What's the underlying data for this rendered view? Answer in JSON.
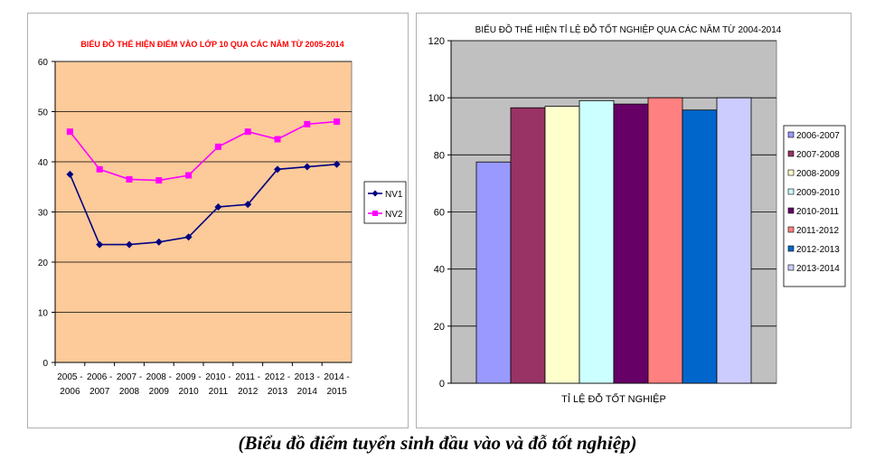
{
  "caption": "(Biểu đồ điểm tuyển sinh đầu vào và đỗ tốt nghiệp)",
  "chart_data": [
    {
      "type": "line",
      "title": "BIỂU ĐỒ THỂ HIỆN ĐIỂM VÀO LỚP 10 QUA CÁC NĂM TỪ 2005-2014",
      "categories": [
        [
          "2005 -",
          "2006"
        ],
        [
          "2006 -",
          "2007"
        ],
        [
          "2007 -",
          "2008"
        ],
        [
          "2008 -",
          "2009"
        ],
        [
          "2009 -",
          "2010"
        ],
        [
          "2010 -",
          "2011"
        ],
        [
          "2011 -",
          "2012"
        ],
        [
          "2012 -",
          "2013"
        ],
        [
          "2013 -",
          "2014"
        ],
        [
          "2014 -",
          "2015"
        ]
      ],
      "series": [
        {
          "name": "NV1",
          "values": [
            37.5,
            23.5,
            23.5,
            24,
            25,
            31,
            31.5,
            38.5,
            39,
            39.5
          ],
          "color": "#000080",
          "marker": "diamond"
        },
        {
          "name": "NV2",
          "values": [
            46,
            38.5,
            36.5,
            36.3,
            37.3,
            43,
            46,
            44.5,
            47.5,
            48
          ],
          "color": "#ff00ff",
          "marker": "square"
        }
      ],
      "ylim": [
        0,
        60
      ],
      "yticks": [
        0,
        10,
        20,
        30,
        40,
        50,
        60
      ],
      "grid": true,
      "plot_bg": "#fdca9a",
      "legend": "right"
    },
    {
      "type": "bar",
      "title": "BIỂU ĐỒ THỂ HIỆN TỈ LỆ ĐỖ TỐT NGHIỆP QUA CÁC NĂM TỪ 2004-2014",
      "xlabel": "TỈ LỆ ĐỖ TỐT NGHIỆP",
      "series": [
        {
          "name": "2006-2007",
          "value": 77.5,
          "color": "#9999ff"
        },
        {
          "name": "2007-2008",
          "value": 96.5,
          "color": "#993366"
        },
        {
          "name": "2008-2009",
          "value": 97,
          "color": "#ffffcc"
        },
        {
          "name": "2009-2010",
          "value": 99,
          "color": "#ccffff"
        },
        {
          "name": "2010-2011",
          "value": 97.8,
          "color": "#660066"
        },
        {
          "name": "2011-2012",
          "value": 100,
          "color": "#ff8080"
        },
        {
          "name": "2012-2013",
          "value": 95.7,
          "color": "#0066cc"
        },
        {
          "name": "2013-2014",
          "value": 100,
          "color": "#ccccff"
        }
      ],
      "ylim": [
        0,
        120
      ],
      "yticks": [
        0,
        20,
        40,
        60,
        80,
        100,
        120
      ],
      "grid": true,
      "plot_bg": "#c0c0c0",
      "legend": "right"
    }
  ]
}
